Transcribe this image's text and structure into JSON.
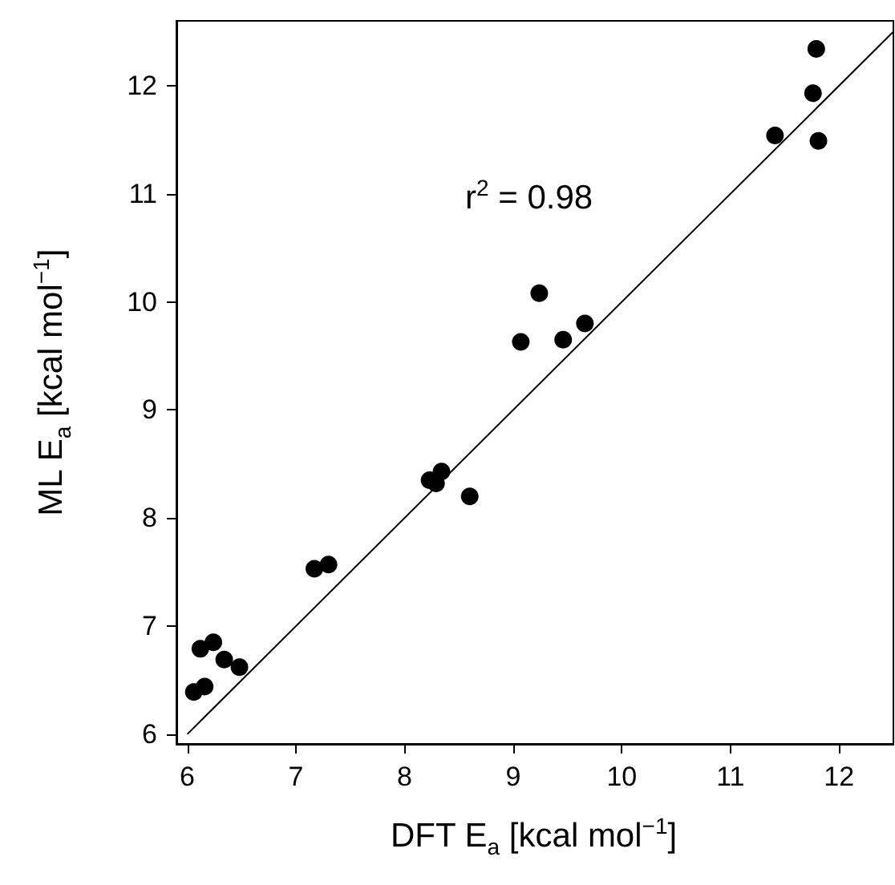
{
  "chart_data": {
    "type": "scatter",
    "xlabel": "DFT E$_{a}$ [kcal mol$^{−1}$]",
    "ylabel": "ML E$_{a}$ [kcal mol$^{−1}$]",
    "annotations": [
      "r$^{2}$ = 0.98"
    ],
    "series": [
      {
        "color": "#000000",
        "marker": "circle",
        "x": [
          11.79,
          11.76,
          11.41,
          11.81,
          9.24,
          9.07,
          9.46,
          9.66,
          8.23,
          8.34,
          8.29,
          8.6,
          7.17,
          7.3,
          6.12,
          6.24,
          6.34,
          6.48,
          6.06,
          6.16
        ],
        "values": [
          12.34,
          11.93,
          11.54,
          11.49,
          10.08,
          9.63,
          9.65,
          9.8,
          8.35,
          8.43,
          8.32,
          8.2,
          7.53,
          7.57,
          6.79,
          6.85,
          6.69,
          6.62,
          6.39,
          6.44
        ]
      },
      {
        "type": "line",
        "color": "#000000",
        "marker": "none",
        "x": [
          6,
          12.5
        ],
        "values": [
          6,
          12.5
        ]
      }
    ],
    "xlim": [
      5.9,
      12.5
    ],
    "ylim": [
      5.91,
      12.6
    ],
    "xticks": [
      6,
      7,
      8,
      9,
      10,
      11,
      12
    ],
    "yticks": [
      6,
      7,
      8,
      9,
      10,
      11,
      12
    ],
    "grid": false
  }
}
